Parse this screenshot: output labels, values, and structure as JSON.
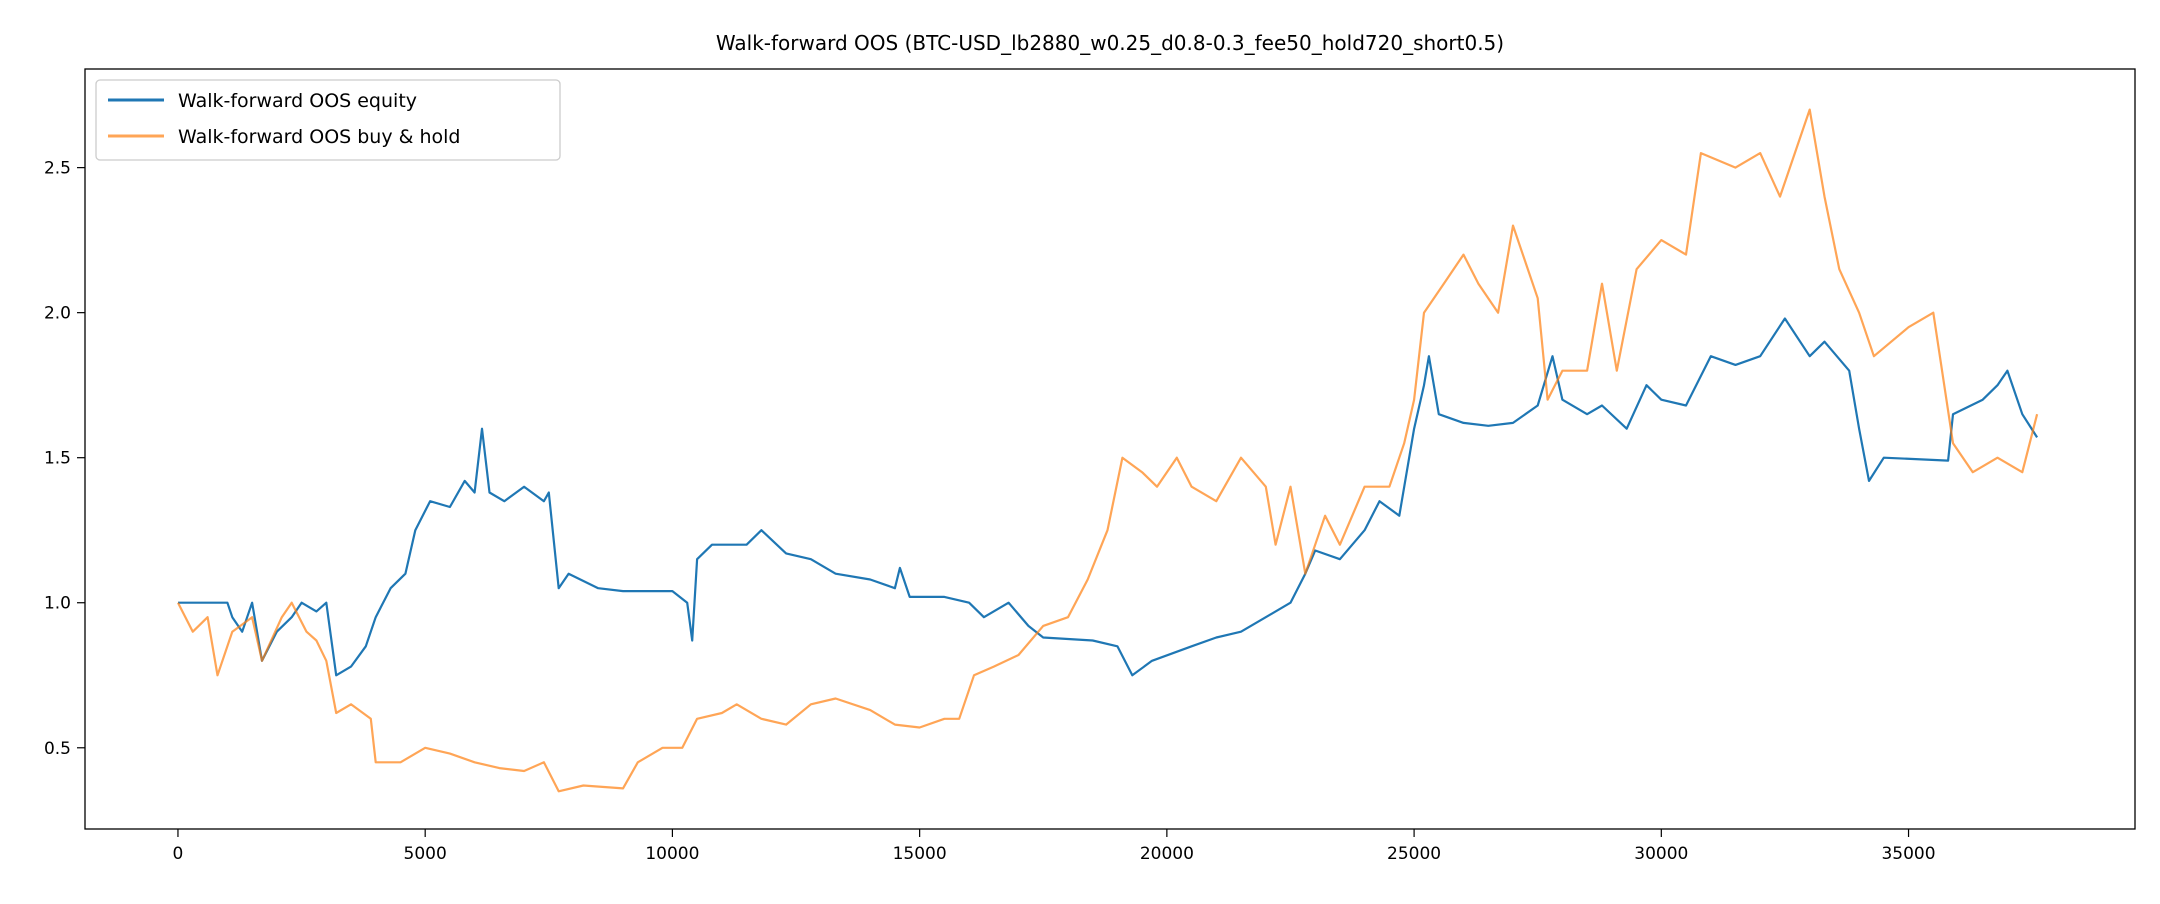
{
  "chart_data": {
    "type": "line",
    "title": "Walk-forward OOS (BTC-USD_lb2880_w0.25_d0.8-0.3_fee50_hold720_short0.5)",
    "xlabel": "",
    "ylabel": "",
    "xlim": [
      -1880,
      39580
    ],
    "ylim": [
      0.22,
      2.84
    ],
    "xticks": [
      0,
      5000,
      10000,
      15000,
      20000,
      25000,
      30000,
      35000
    ],
    "yticks": [
      0.5,
      1.0,
      1.5,
      2.0,
      2.5
    ],
    "ytick_labels": [
      "0.5",
      "1.0",
      "1.5",
      "2.0",
      "2.5"
    ],
    "grid": false,
    "legend_position": "top-left",
    "series": [
      {
        "name": "Walk-forward OOS equity",
        "color": "#1f77b4",
        "points": [
          [
            0,
            1.0
          ],
          [
            1000,
            1.0
          ],
          [
            1100,
            0.95
          ],
          [
            1300,
            0.9
          ],
          [
            1500,
            1.0
          ],
          [
            1700,
            0.8
          ],
          [
            2000,
            0.9
          ],
          [
            2300,
            0.95
          ],
          [
            2500,
            1.0
          ],
          [
            2800,
            0.97
          ],
          [
            3000,
            1.0
          ],
          [
            3200,
            0.75
          ],
          [
            3500,
            0.78
          ],
          [
            3800,
            0.85
          ],
          [
            4000,
            0.95
          ],
          [
            4300,
            1.05
          ],
          [
            4600,
            1.1
          ],
          [
            4800,
            1.25
          ],
          [
            5100,
            1.35
          ],
          [
            5500,
            1.33
          ],
          [
            5800,
            1.42
          ],
          [
            6000,
            1.38
          ],
          [
            6150,
            1.6
          ],
          [
            6300,
            1.38
          ],
          [
            6600,
            1.35
          ],
          [
            7000,
            1.4
          ],
          [
            7400,
            1.35
          ],
          [
            7500,
            1.38
          ],
          [
            7700,
            1.05
          ],
          [
            7900,
            1.1
          ],
          [
            8500,
            1.05
          ],
          [
            9000,
            1.04
          ],
          [
            10000,
            1.04
          ],
          [
            10300,
            1.0
          ],
          [
            10400,
            0.87
          ],
          [
            10500,
            1.15
          ],
          [
            10800,
            1.2
          ],
          [
            11500,
            1.2
          ],
          [
            11800,
            1.25
          ],
          [
            12300,
            1.17
          ],
          [
            12800,
            1.15
          ],
          [
            13300,
            1.1
          ],
          [
            14000,
            1.08
          ],
          [
            14500,
            1.05
          ],
          [
            14600,
            1.12
          ],
          [
            14800,
            1.02
          ],
          [
            15500,
            1.02
          ],
          [
            16000,
            1.0
          ],
          [
            16300,
            0.95
          ],
          [
            16800,
            1.0
          ],
          [
            17200,
            0.92
          ],
          [
            17500,
            0.88
          ],
          [
            18500,
            0.87
          ],
          [
            19000,
            0.85
          ],
          [
            19300,
            0.75
          ],
          [
            19700,
            0.8
          ],
          [
            20500,
            0.85
          ],
          [
            21000,
            0.88
          ],
          [
            21500,
            0.9
          ],
          [
            22000,
            0.95
          ],
          [
            22500,
            1.0
          ],
          [
            22800,
            1.1
          ],
          [
            23000,
            1.18
          ],
          [
            23500,
            1.15
          ],
          [
            24000,
            1.25
          ],
          [
            24300,
            1.35
          ],
          [
            24700,
            1.3
          ],
          [
            25000,
            1.6
          ],
          [
            25200,
            1.75
          ],
          [
            25300,
            1.85
          ],
          [
            25500,
            1.65
          ],
          [
            26000,
            1.62
          ],
          [
            26500,
            1.61
          ],
          [
            27000,
            1.62
          ],
          [
            27500,
            1.68
          ],
          [
            27800,
            1.85
          ],
          [
            28000,
            1.7
          ],
          [
            28500,
            1.65
          ],
          [
            28800,
            1.68
          ],
          [
            29300,
            1.6
          ],
          [
            29700,
            1.75
          ],
          [
            30000,
            1.7
          ],
          [
            30500,
            1.68
          ],
          [
            31000,
            1.85
          ],
          [
            31500,
            1.82
          ],
          [
            32000,
            1.85
          ],
          [
            32500,
            1.98
          ],
          [
            33000,
            1.85
          ],
          [
            33300,
            1.9
          ],
          [
            33800,
            1.8
          ],
          [
            34000,
            1.6
          ],
          [
            34200,
            1.42
          ],
          [
            34500,
            1.5
          ],
          [
            35800,
            1.49
          ],
          [
            35900,
            1.65
          ],
          [
            36500,
            1.7
          ],
          [
            36800,
            1.75
          ],
          [
            37000,
            1.8
          ],
          [
            37300,
            1.65
          ],
          [
            37600,
            1.57
          ]
        ]
      },
      {
        "name": "Walk-forward OOS buy & hold",
        "color": "#ff7f0e",
        "points": [
          [
            0,
            1.0
          ],
          [
            300,
            0.9
          ],
          [
            600,
            0.95
          ],
          [
            800,
            0.75
          ],
          [
            1100,
            0.9
          ],
          [
            1500,
            0.95
          ],
          [
            1700,
            0.8
          ],
          [
            2100,
            0.95
          ],
          [
            2300,
            1.0
          ],
          [
            2600,
            0.9
          ],
          [
            2800,
            0.87
          ],
          [
            3000,
            0.8
          ],
          [
            3200,
            0.62
          ],
          [
            3500,
            0.65
          ],
          [
            3900,
            0.6
          ],
          [
            4000,
            0.45
          ],
          [
            4500,
            0.45
          ],
          [
            5000,
            0.5
          ],
          [
            5500,
            0.48
          ],
          [
            6000,
            0.45
          ],
          [
            6500,
            0.43
          ],
          [
            7000,
            0.42
          ],
          [
            7400,
            0.45
          ],
          [
            7700,
            0.35
          ],
          [
            8200,
            0.37
          ],
          [
            9000,
            0.36
          ],
          [
            9300,
            0.45
          ],
          [
            9800,
            0.5
          ],
          [
            10200,
            0.5
          ],
          [
            10500,
            0.6
          ],
          [
            11000,
            0.62
          ],
          [
            11300,
            0.65
          ],
          [
            11800,
            0.6
          ],
          [
            12300,
            0.58
          ],
          [
            12800,
            0.65
          ],
          [
            13300,
            0.67
          ],
          [
            14000,
            0.63
          ],
          [
            14500,
            0.58
          ],
          [
            15000,
            0.57
          ],
          [
            15500,
            0.6
          ],
          [
            15800,
            0.6
          ],
          [
            16100,
            0.75
          ],
          [
            16500,
            0.78
          ],
          [
            17000,
            0.82
          ],
          [
            17500,
            0.92
          ],
          [
            18000,
            0.95
          ],
          [
            18400,
            1.08
          ],
          [
            18800,
            1.25
          ],
          [
            19100,
            1.5
          ],
          [
            19500,
            1.45
          ],
          [
            19800,
            1.4
          ],
          [
            20200,
            1.5
          ],
          [
            20500,
            1.4
          ],
          [
            21000,
            1.35
          ],
          [
            21500,
            1.5
          ],
          [
            22000,
            1.4
          ],
          [
            22200,
            1.2
          ],
          [
            22500,
            1.4
          ],
          [
            22800,
            1.1
          ],
          [
            23200,
            1.3
          ],
          [
            23500,
            1.2
          ],
          [
            24000,
            1.4
          ],
          [
            24500,
            1.4
          ],
          [
            24800,
            1.55
          ],
          [
            25000,
            1.7
          ],
          [
            25200,
            2.0
          ],
          [
            25600,
            2.1
          ],
          [
            26000,
            2.2
          ],
          [
            26300,
            2.1
          ],
          [
            26700,
            2.0
          ],
          [
            27000,
            2.3
          ],
          [
            27500,
            2.05
          ],
          [
            27700,
            1.7
          ],
          [
            28000,
            1.8
          ],
          [
            28500,
            1.8
          ],
          [
            28800,
            2.1
          ],
          [
            29100,
            1.8
          ],
          [
            29500,
            2.15
          ],
          [
            30000,
            2.25
          ],
          [
            30500,
            2.2
          ],
          [
            30800,
            2.55
          ],
          [
            31500,
            2.5
          ],
          [
            32000,
            2.55
          ],
          [
            32400,
            2.4
          ],
          [
            32800,
            2.6
          ],
          [
            33000,
            2.7
          ],
          [
            33300,
            2.4
          ],
          [
            33600,
            2.15
          ],
          [
            34000,
            2.0
          ],
          [
            34300,
            1.85
          ],
          [
            35000,
            1.95
          ],
          [
            35500,
            2.0
          ],
          [
            35900,
            1.55
          ],
          [
            36300,
            1.45
          ],
          [
            36800,
            1.5
          ],
          [
            37300,
            1.45
          ],
          [
            37600,
            1.65
          ]
        ]
      }
    ]
  }
}
